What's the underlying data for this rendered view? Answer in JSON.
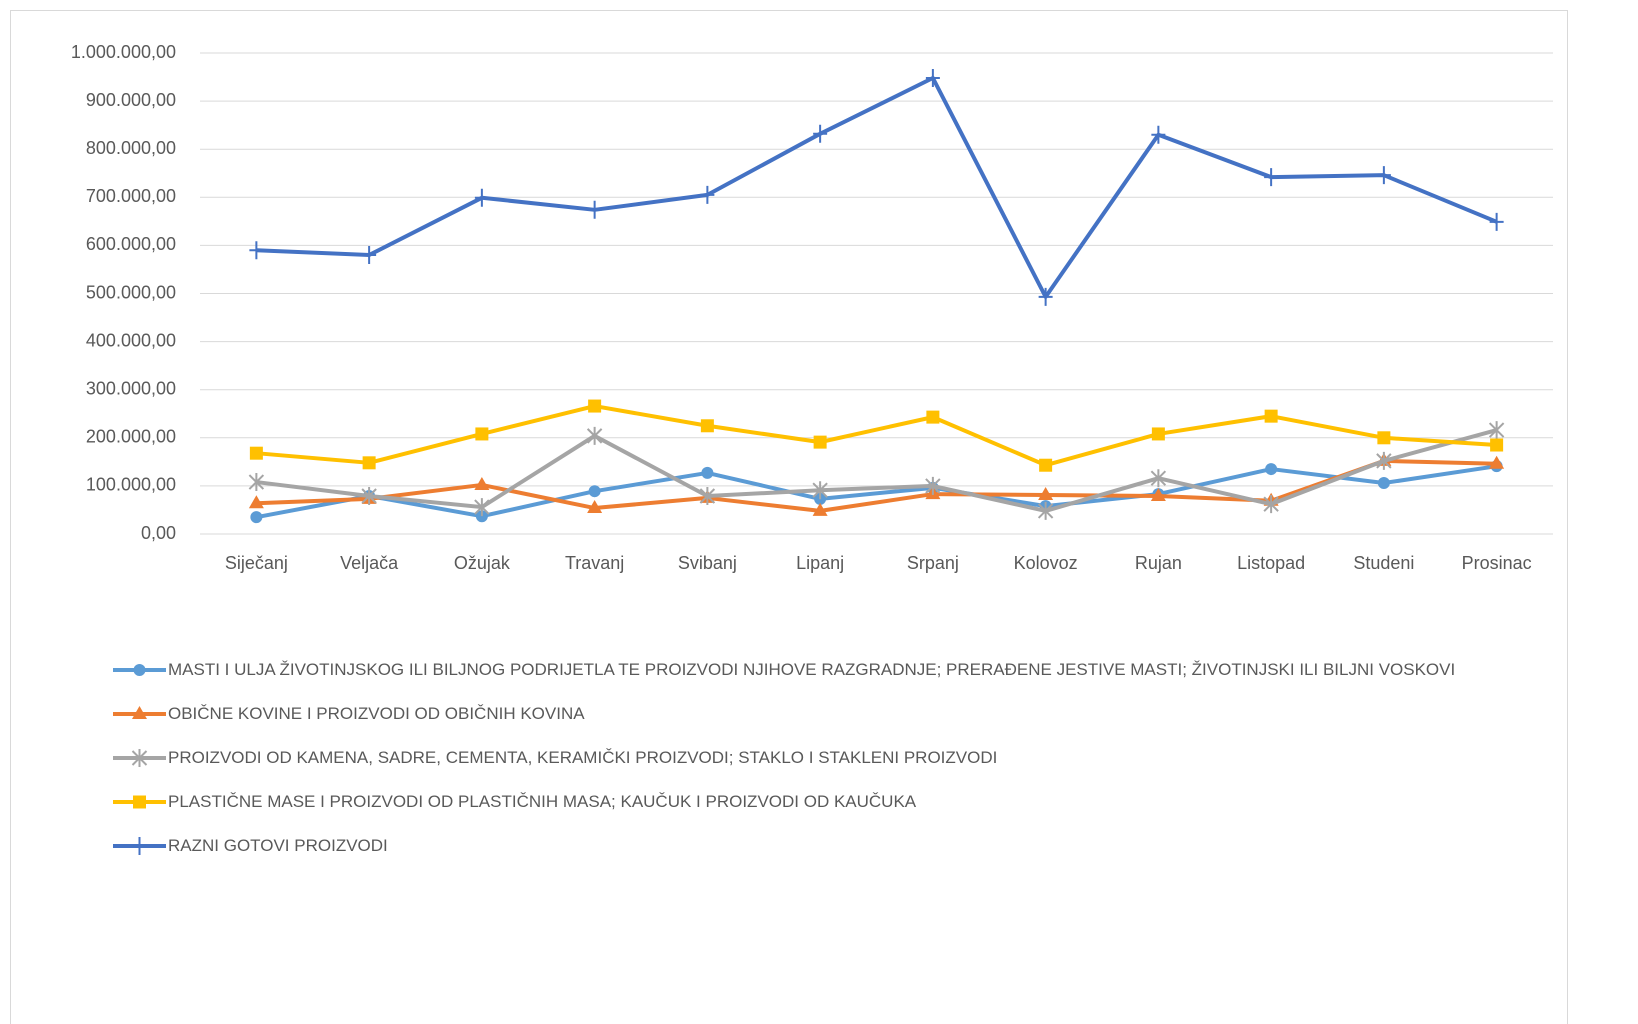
{
  "chart_data": {
    "type": "line",
    "categories": [
      "Siječanj",
      "Veljača",
      "Ožujak",
      "Travanj",
      "Svibanj",
      "Lipanj",
      "Srpanj",
      "Kolovoz",
      "Rujan",
      "Listopad",
      "Studeni",
      "Prosinac"
    ],
    "series": [
      {
        "name": "MASTI I ULJA ŽIVOTINJSKOG ILI BILJNOG PODRIJETLA TE PROIZVODI NJIHOVE RAZGRADNJE; PRERAĐENE JESTIVE MASTI; ŽIVOTINJSKI ILI BILJNI VOSKOVI",
        "color": "#5b9bd5",
        "marker": "circle",
        "values": [
          35000,
          79000,
          37000,
          89000,
          127000,
          73000,
          96000,
          58000,
          83000,
          135000,
          106000,
          141000
        ]
      },
      {
        "name": "OBIČNE KOVINE I PROIZVODI OD OBIČNIH KOVINA",
        "color": "#ed7d31",
        "marker": "triangle",
        "values": [
          64000,
          73000,
          102000,
          54000,
          75000,
          48000,
          83000,
          81000,
          79000,
          69000,
          152000,
          146000
        ]
      },
      {
        "name": "PROIZVODI OD KAMENA, SADRE, CEMENTA, KERAMIČKI PROIZVODI; STAKLO I STAKLENI PROIZVODI",
        "color": "#a5a5a5",
        "marker": "star",
        "values": [
          108000,
          79000,
          56000,
          204000,
          79000,
          91000,
          100000,
          48000,
          116000,
          62000,
          152000,
          216000
        ]
      },
      {
        "name": "PLASTIČNE MASE I PROIZVODI OD PLASTIČNIH MASA; KAUČUK I PROIZVODI OD KAUČUKA",
        "color": "#ffc000",
        "marker": "square",
        "values": [
          168000,
          148000,
          208000,
          266000,
          225000,
          191000,
          243000,
          143000,
          208000,
          245000,
          200000,
          185000
        ]
      },
      {
        "name": "RAZNI GOTOVI PROIZVODI",
        "color": "#4472c4",
        "marker": "plus",
        "values": [
          590000,
          580000,
          699000,
          674000,
          705000,
          832000,
          948000,
          493000,
          830000,
          742000,
          746000,
          649000
        ]
      }
    ],
    "ylim": [
      0,
      1000000
    ],
    "yticks": [
      {
        "value": 0,
        "label": "0,00"
      },
      {
        "value": 100000,
        "label": "100.000,00"
      },
      {
        "value": 200000,
        "label": "200.000,00"
      },
      {
        "value": 300000,
        "label": "300.000,00"
      },
      {
        "value": 400000,
        "label": "400.000,00"
      },
      {
        "value": 500000,
        "label": "500.000,00"
      },
      {
        "value": 600000,
        "label": "600.000,00"
      },
      {
        "value": 700000,
        "label": "700.000,00"
      },
      {
        "value": 800000,
        "label": "800.000,00"
      },
      {
        "value": 900000,
        "label": "900.000,00"
      },
      {
        "value": 1000000,
        "label": "1.000.000,00"
      }
    ],
    "grid": true,
    "legend": "bottom"
  }
}
